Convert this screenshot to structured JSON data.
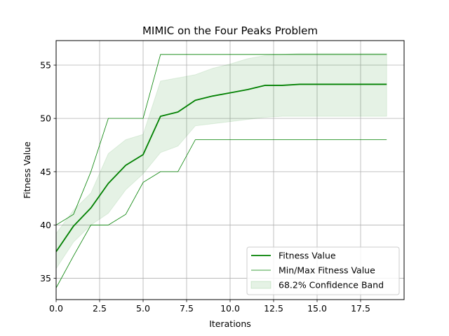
{
  "chart_data": {
    "type": "line",
    "title": "MIMIC on the Four Peaks Problem",
    "xlabel": "Iterations",
    "ylabel": "Fitness Value",
    "xlim": [
      0,
      20
    ],
    "ylim": [
      33,
      57.3
    ],
    "xticks": [
      0,
      2.5,
      5,
      7.5,
      10,
      12.5,
      15,
      17.5
    ],
    "xtick_labels": [
      "0.0",
      "2.5",
      "5.0",
      "7.5",
      "10.0",
      "12.5",
      "15.0",
      "17.5"
    ],
    "yticks": [
      35,
      40,
      45,
      50,
      55
    ],
    "ytick_labels": [
      "35",
      "40",
      "45",
      "50",
      "55"
    ],
    "grid": true,
    "legend_position": "lower-right",
    "color": "#008000",
    "x": [
      0,
      1,
      2,
      3,
      4,
      5,
      6,
      7,
      8,
      9,
      10,
      11,
      12,
      13,
      14,
      15,
      16,
      17,
      18,
      19
    ],
    "series": [
      {
        "name": "Fitness Value",
        "style": "line-thick",
        "values": [
          37.5,
          39.9,
          41.6,
          43.9,
          45.6,
          46.6,
          50.2,
          50.6,
          51.7,
          52.1,
          52.4,
          52.7,
          53.1,
          53.1,
          53.2,
          53.2,
          53.2,
          53.2,
          53.2,
          53.2
        ]
      },
      {
        "name": "Min/Max Fitness Value",
        "style": "line-thin",
        "min": [
          34.1,
          37.1,
          40.0,
          40.0,
          41.0,
          44.0,
          45.0,
          45.0,
          48.0,
          48.0,
          48.0,
          48.0,
          48.0,
          48.0,
          48.0,
          48.0,
          48.0,
          48.0,
          48.0,
          48.0
        ],
        "max": [
          40.0,
          41.0,
          45.0,
          50.0,
          50.0,
          50.0,
          56.0,
          56.0,
          56.0,
          56.0,
          56.0,
          56.0,
          56.0,
          56.0,
          56.0,
          56.0,
          56.0,
          56.0,
          56.0,
          56.0
        ]
      },
      {
        "name": "68.2% Confidence Band",
        "style": "band",
        "lower": [
          35.9,
          38.4,
          40.0,
          41.1,
          43.3,
          44.8,
          46.8,
          47.4,
          49.3,
          49.5,
          49.7,
          49.9,
          50.1,
          50.2,
          50.2,
          50.2,
          50.2,
          50.2,
          50.2,
          50.2
        ],
        "upper": [
          39.2,
          41.4,
          43.0,
          46.7,
          48.0,
          48.5,
          53.5,
          53.8,
          54.1,
          54.7,
          55.1,
          55.6,
          55.9,
          56.0,
          56.1,
          56.1,
          56.1,
          56.1,
          56.1,
          56.1
        ]
      }
    ]
  }
}
